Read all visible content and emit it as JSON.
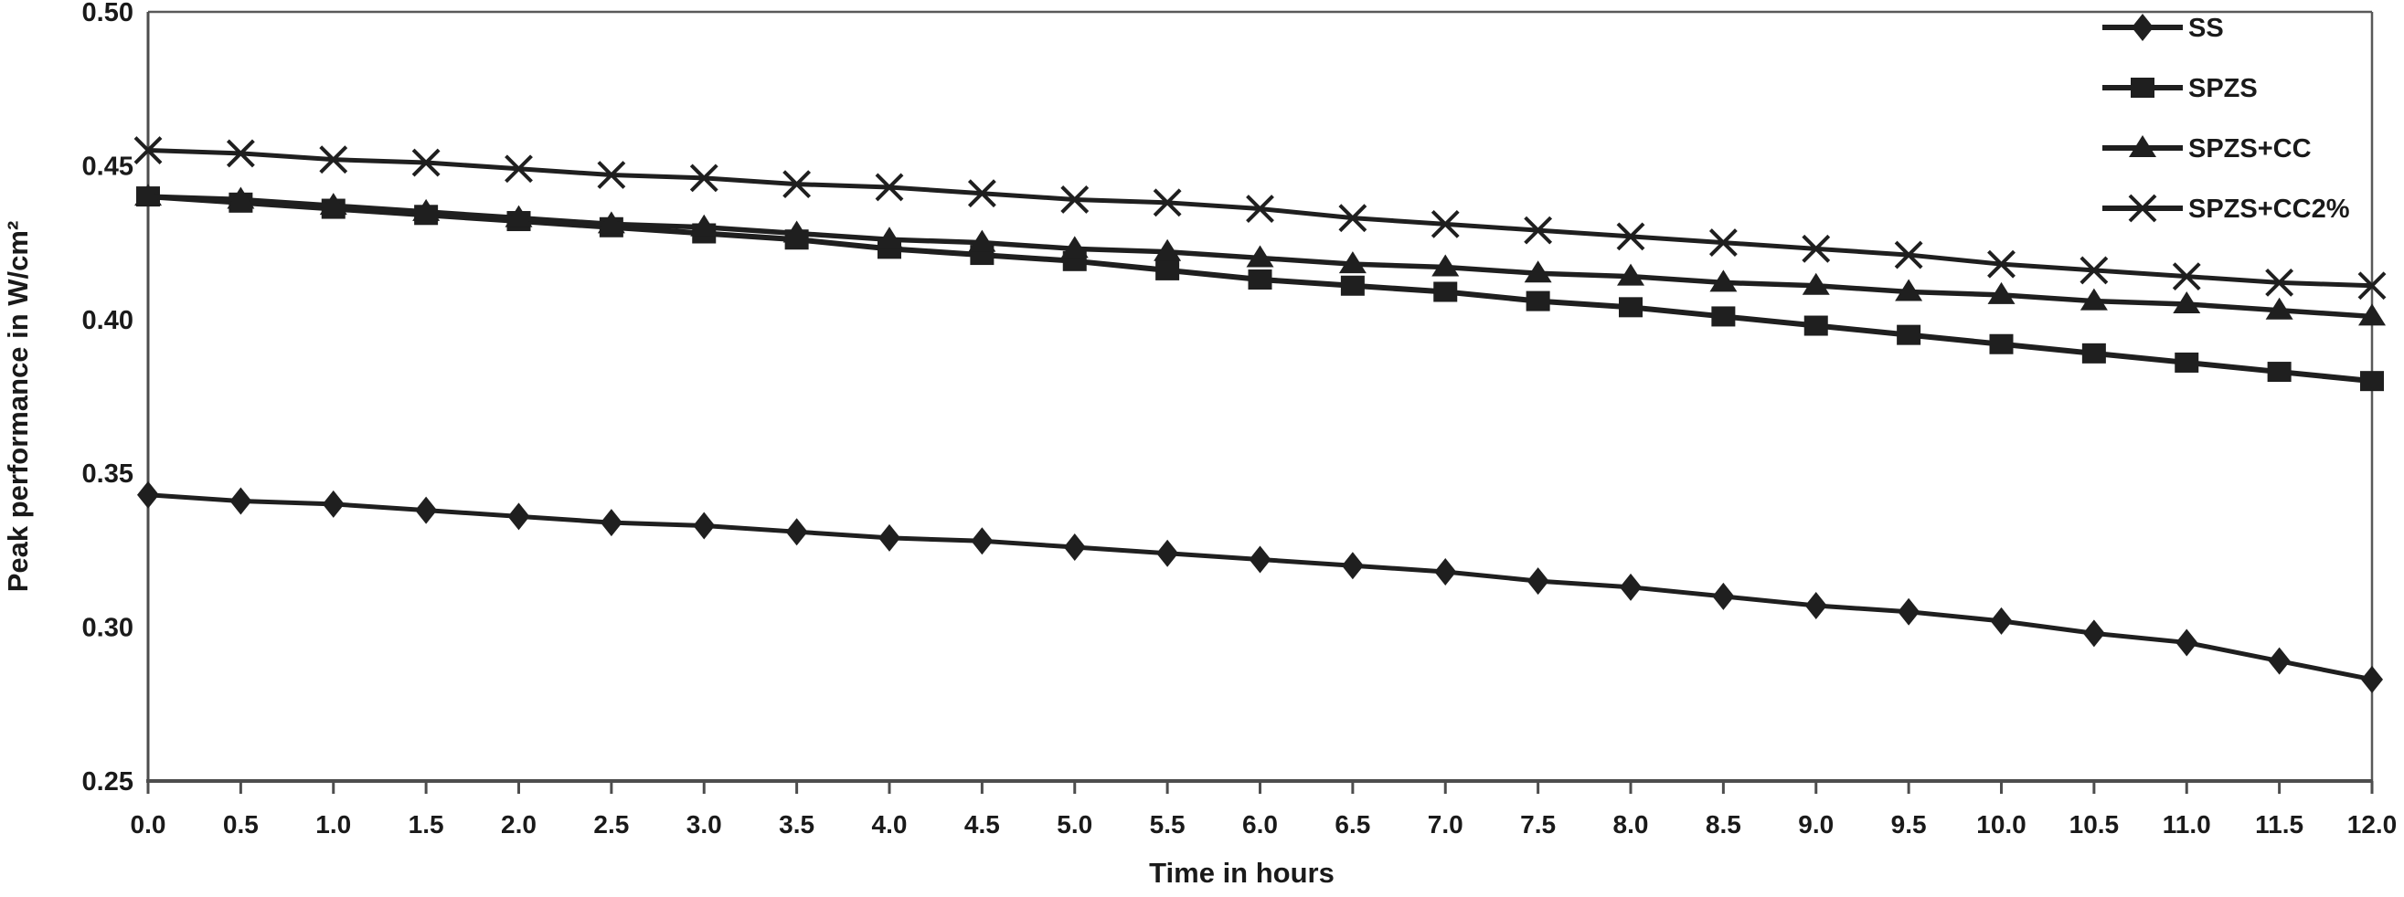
{
  "chart_data": {
    "type": "line",
    "title": "",
    "xlabel": "Time in hours",
    "ylabel": "Peak performance in W/cm²",
    "xlim": [
      0,
      12
    ],
    "ylim": [
      0.25,
      0.5
    ],
    "grid": false,
    "legend_position": "top-right-inside",
    "x_ticks": [
      "0.0",
      "0.5",
      "1.0",
      "1.5",
      "2.0",
      "2.5",
      "3.0",
      "3.5",
      "4.0",
      "4.5",
      "5.0",
      "5.5",
      "6.0",
      "6.5",
      "7.0",
      "7.5",
      "8.0",
      "8.5",
      "9.0",
      "9.5",
      "10.0",
      "10.5",
      "11.0",
      "11.5",
      "12.0"
    ],
    "y_ticks": [
      "0.25",
      "0.30",
      "0.35",
      "0.40",
      "0.45",
      "0.50"
    ],
    "x": [
      0,
      0.5,
      1,
      1.5,
      2,
      2.5,
      3,
      3.5,
      4,
      4.5,
      5,
      5.5,
      6,
      6.5,
      7,
      7.5,
      8,
      8.5,
      9,
      9.5,
      10,
      10.5,
      11,
      11.5,
      12
    ],
    "series": [
      {
        "name": "SS",
        "marker": "diamond",
        "values": [
          0.343,
          0.341,
          0.34,
          0.338,
          0.336,
          0.334,
          0.333,
          0.331,
          0.329,
          0.328,
          0.326,
          0.324,
          0.322,
          0.32,
          0.318,
          0.315,
          0.313,
          0.31,
          0.307,
          0.305,
          0.302,
          0.298,
          0.295,
          0.289,
          0.283
        ]
      },
      {
        "name": "SPZS",
        "marker": "square",
        "values": [
          0.44,
          0.438,
          0.436,
          0.434,
          0.432,
          0.43,
          0.428,
          0.426,
          0.423,
          0.421,
          0.419,
          0.416,
          0.413,
          0.411,
          0.409,
          0.406,
          0.404,
          0.401,
          0.398,
          0.395,
          0.392,
          0.389,
          0.386,
          0.383,
          0.38
        ]
      },
      {
        "name": "SPZS+CC",
        "marker": "triangle",
        "values": [
          0.44,
          0.439,
          0.437,
          0.435,
          0.433,
          0.431,
          0.43,
          0.428,
          0.426,
          0.425,
          0.423,
          0.422,
          0.42,
          0.418,
          0.417,
          0.415,
          0.414,
          0.412,
          0.411,
          0.409,
          0.408,
          0.406,
          0.405,
          0.403,
          0.401
        ]
      },
      {
        "name": "SPZS+CC2%",
        "marker": "x",
        "values": [
          0.455,
          0.454,
          0.452,
          0.451,
          0.449,
          0.447,
          0.446,
          0.444,
          0.443,
          0.441,
          0.439,
          0.438,
          0.436,
          0.433,
          0.431,
          0.429,
          0.427,
          0.425,
          0.423,
          0.421,
          0.418,
          0.416,
          0.414,
          0.412,
          0.411
        ]
      }
    ],
    "colors": {
      "series": "#1f1f1f",
      "axis": "#4d4d4d",
      "frame": "#595959",
      "text": "#1a1a1a",
      "background": "#ffffff"
    }
  }
}
